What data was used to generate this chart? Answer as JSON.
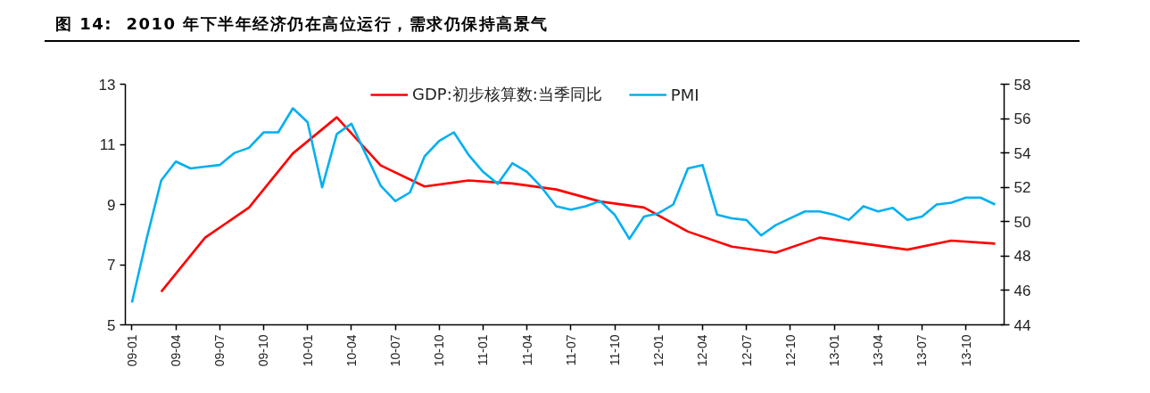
{
  "chart_data": {
    "type": "line",
    "title": "图 14:  2010 年下半年经济仍在高位运行，需求仍保持高景气",
    "x": [
      "2009-01",
      "2009-02",
      "2009-03",
      "2009-04",
      "2009-05",
      "2009-06",
      "2009-07",
      "2009-08",
      "2009-09",
      "2009-10",
      "2009-11",
      "2009-12",
      "2010-01",
      "2010-02",
      "2010-03",
      "2010-04",
      "2010-05",
      "2010-06",
      "2010-07",
      "2010-08",
      "2010-09",
      "2010-10",
      "2010-11",
      "2010-12",
      "2011-01",
      "2011-02",
      "2011-03",
      "2011-04",
      "2011-05",
      "2011-06",
      "2011-07",
      "2011-08",
      "2011-09",
      "2011-10",
      "2011-11",
      "2011-12",
      "2012-01",
      "2012-02",
      "2012-03",
      "2012-04",
      "2012-05",
      "2012-06",
      "2012-07",
      "2012-08",
      "2012-09",
      "2012-10",
      "2012-11",
      "2012-12",
      "2013-01",
      "2013-02",
      "2013-03",
      "2013-04",
      "2013-05",
      "2013-06",
      "2013-07",
      "2013-08",
      "2013-09",
      "2013-10",
      "2013-11",
      "2013-12"
    ],
    "series": [
      {
        "name": "GDP:初步核算数:当季同比",
        "color": "#ff0000",
        "x": [
          "2009-03",
          "2009-06",
          "2009-09",
          "2009-12",
          "2010-03",
          "2010-06",
          "2010-09",
          "2010-12",
          "2011-03",
          "2011-06",
          "2011-09",
          "2011-12",
          "2012-03",
          "2012-06",
          "2012-09",
          "2012-12",
          "2013-03",
          "2013-06",
          "2013-09",
          "2013-12"
        ],
        "values": [
          6.1,
          7.9,
          8.9,
          10.7,
          11.9,
          10.3,
          9.6,
          9.8,
          9.7,
          9.5,
          9.1,
          8.9,
          8.1,
          7.6,
          7.4,
          7.9,
          7.7,
          7.5,
          7.8,
          7.7
        ]
      },
      {
        "name": "PMI",
        "color": "#00b0f0",
        "axis": "y2",
        "values": [
          45.3,
          49.0,
          52.4,
          53.5,
          53.1,
          53.2,
          53.3,
          54.0,
          54.3,
          55.2,
          55.2,
          56.6,
          55.8,
          52.0,
          55.1,
          55.7,
          53.9,
          52.1,
          51.2,
          51.7,
          53.8,
          54.7,
          55.2,
          53.9,
          52.9,
          52.2,
          53.4,
          52.9,
          52.0,
          50.9,
          50.7,
          50.9,
          51.2,
          50.4,
          49.0,
          50.3,
          50.5,
          51.0,
          53.1,
          53.3,
          50.4,
          50.2,
          50.1,
          49.2,
          49.8,
          50.2,
          50.6,
          50.6,
          50.4,
          50.1,
          50.9,
          50.6,
          50.8,
          50.1,
          50.3,
          51.0,
          51.1,
          51.4,
          51.4,
          51.0
        ]
      }
    ],
    "xlim": [
      "2008-12-18",
      "2013-12-20"
    ],
    "xticks": [
      {
        "value": "2009-01",
        "label": "09-01"
      },
      {
        "value": "2009-04",
        "label": "09-04"
      },
      {
        "value": "2009-07",
        "label": "09-07"
      },
      {
        "value": "2009-10",
        "label": "09-10"
      },
      {
        "value": "2010-01",
        "label": "10-01"
      },
      {
        "value": "2010-04",
        "label": "10-04"
      },
      {
        "value": "2010-07",
        "label": "10-07"
      },
      {
        "value": "2010-10",
        "label": "10-10"
      },
      {
        "value": "2011-01",
        "label": "11-01"
      },
      {
        "value": "2011-04",
        "label": "11-04"
      },
      {
        "value": "2011-07",
        "label": "11-07"
      },
      {
        "value": "2011-10",
        "label": "11-10"
      },
      {
        "value": "2012-01",
        "label": "12-01"
      },
      {
        "value": "2012-04",
        "label": "12-04"
      },
      {
        "value": "2012-07",
        "label": "12-07"
      },
      {
        "value": "2012-10",
        "label": "12-10"
      },
      {
        "value": "2013-01",
        "label": "13-01"
      },
      {
        "value": "2013-04",
        "label": "13-04"
      },
      {
        "value": "2013-07",
        "label": "13-07"
      },
      {
        "value": "2013-10",
        "label": "13-10"
      }
    ],
    "ylim": [
      5,
      13
    ],
    "yticks": [
      5,
      7,
      9,
      11,
      13
    ],
    "y2lim": [
      44,
      58
    ],
    "y2ticks": [
      44,
      46,
      48,
      50,
      52,
      54,
      56,
      58
    ],
    "legend": "top",
    "grid": false,
    "marker": "none",
    "line_style": "solid"
  }
}
